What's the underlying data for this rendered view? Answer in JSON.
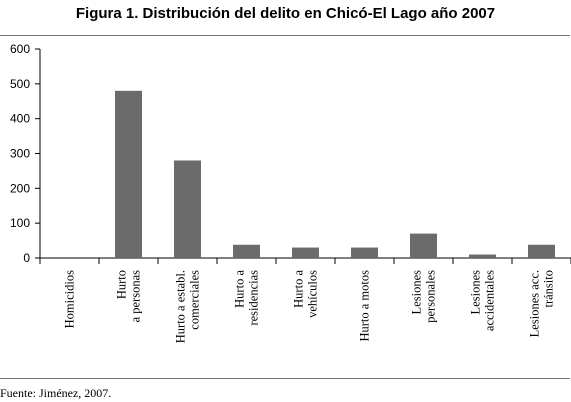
{
  "title": "Figura 1. Distribución del delito en Chicó-El Lago año 2007",
  "source": "Fuente: Jiménez, 2007.",
  "chart_data": {
    "type": "bar",
    "title": "Figura 1. Distribución del delito en Chicó-El Lago año 2007",
    "xlabel": "",
    "ylabel": "",
    "ylim": [
      0,
      600
    ],
    "yticks": [
      "0",
      "100",
      "200",
      "300",
      "400",
      "500",
      "600"
    ],
    "grid": false,
    "bar_color": "#6b6b6b",
    "categories": [
      [
        "Homicidios"
      ],
      [
        "Hurto",
        "a personas"
      ],
      [
        "Hurto a establ.",
        "comerciales"
      ],
      [
        "Hurto a",
        "residencias"
      ],
      [
        "Hurto a",
        "vehículos"
      ],
      [
        "Hurto a motos"
      ],
      [
        "Lesiones",
        "personales"
      ],
      [
        "Lesiones",
        "accidentales"
      ],
      [
        "Lesiones acc.",
        "tránsito"
      ]
    ],
    "values": [
      0,
      480,
      280,
      38,
      30,
      30,
      70,
      10,
      38
    ]
  }
}
